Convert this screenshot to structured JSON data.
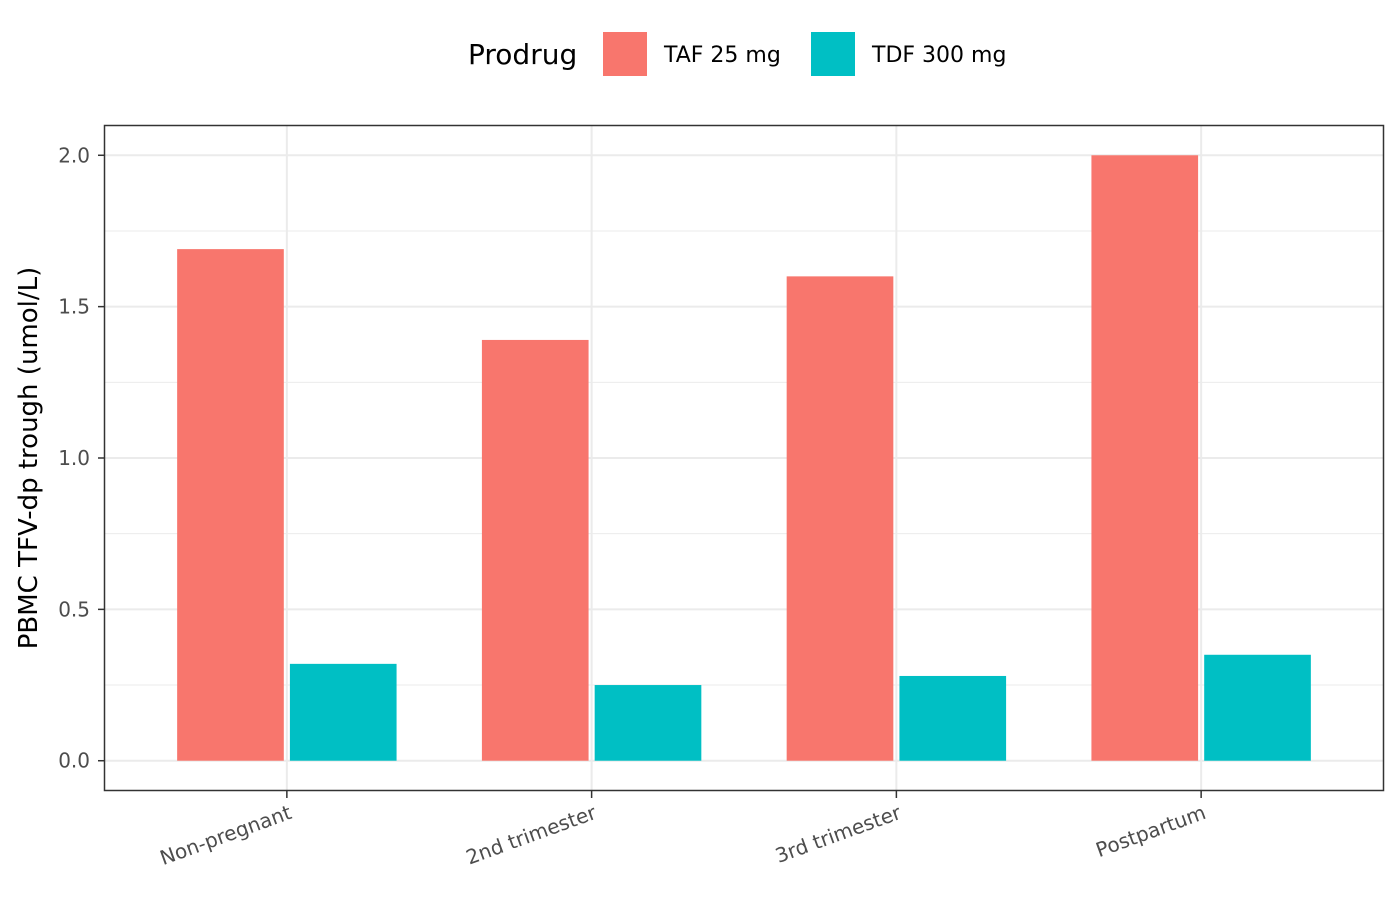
{
  "chart_data": {
    "type": "bar",
    "title": "",
    "xlabel": "",
    "ylabel": "PBMC TFV-dp trough (umol/L)",
    "categories": [
      "Non-pregnant",
      "2nd trimester",
      "3rd trimester",
      "Postpartum"
    ],
    "series": [
      {
        "name": "TAF 25 mg",
        "color": "#F8766D",
        "values": [
          1.69,
          1.39,
          1.6,
          2.0
        ]
      },
      {
        "name": "TDF 300 mg",
        "color": "#00BFC4",
        "values": [
          0.32,
          0.25,
          0.28,
          0.35
        ]
      }
    ],
    "ylim": [
      -0.1,
      2.1
    ],
    "yticks": [
      0.0,
      0.5,
      1.0,
      1.5,
      2.0
    ],
    "ytick_labels": [
      "0.0",
      "0.5",
      "1.0",
      "1.5",
      "2.0"
    ],
    "grid": true,
    "legend": {
      "title": "Prodrug",
      "position": "top"
    }
  }
}
